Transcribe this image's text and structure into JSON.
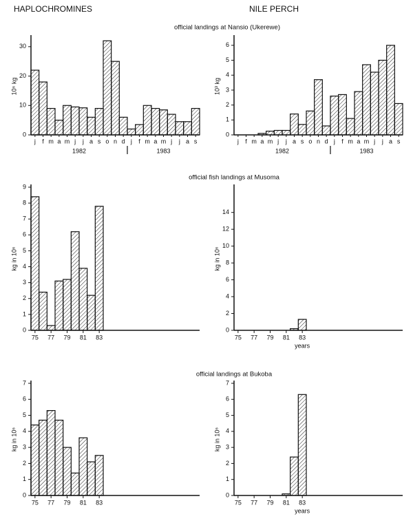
{
  "column_headers": [
    "HAPLOCHROMINES",
    "NILE PERCH"
  ],
  "section_titles": [
    "official landings at Nansio (Ukerewe)",
    "official fish landings at Musoma",
    "official landings at Bukoba"
  ],
  "chart_data": [
    {
      "type": "bar",
      "ylabel": "10⁶ kg",
      "categories": [
        "j",
        "f",
        "m",
        "a",
        "m",
        "j",
        "j",
        "a",
        "s",
        "o",
        "n",
        "d",
        "j",
        "f",
        "m",
        "a",
        "m",
        "j",
        "j",
        "a",
        "s"
      ],
      "values": [
        22,
        18,
        9,
        5,
        10,
        9.5,
        9.2,
        6,
        9,
        32,
        25,
        6,
        2,
        3.5,
        10,
        9,
        8.5,
        7,
        4.5,
        4.5,
        9
      ],
      "year_labels": [
        "1982",
        "1983"
      ],
      "ylim": [
        0,
        33
      ],
      "yticks": [
        0,
        10,
        20,
        30
      ]
    },
    {
      "type": "bar",
      "ylabel": "10³ kg",
      "categories": [
        "j",
        "f",
        "m",
        "a",
        "m",
        "j",
        "j",
        "a",
        "s",
        "o",
        "n",
        "d",
        "j",
        "f",
        "m",
        "a",
        "m",
        "j",
        "j",
        "a",
        "s"
      ],
      "values": [
        0,
        0,
        0,
        0.1,
        0.25,
        0.3,
        0.3,
        1.4,
        0.7,
        1.6,
        3.7,
        0.6,
        2.6,
        2.7,
        1.1,
        2.9,
        4.7,
        4.2,
        5.0,
        6.0,
        2.1
      ],
      "year_labels": [
        "1982",
        "1983"
      ],
      "ylim": [
        0,
        6.5
      ],
      "yticks": [
        0,
        1,
        2,
        3,
        4,
        5,
        6
      ]
    },
    {
      "type": "hist",
      "ylabel": "kg in 10⁶",
      "x": [
        75,
        76,
        77,
        78,
        79,
        80,
        81,
        82,
        83
      ],
      "values": [
        8.4,
        2.4,
        0.3,
        3.1,
        3.2,
        6.2,
        3.9,
        2.2,
        7.8
      ],
      "xlim": [
        74.5,
        95.5
      ],
      "xticks": [
        75,
        77,
        79,
        81,
        83
      ],
      "ylim": [
        0,
        9
      ],
      "yticks": [
        0,
        1,
        2,
        3,
        4,
        5,
        6,
        7,
        8,
        9
      ]
    },
    {
      "type": "hist",
      "ylabel": "kg in 10⁶",
      "xlabel": "years",
      "x": [
        75,
        76,
        77,
        78,
        79,
        80,
        81,
        82,
        83
      ],
      "values": [
        0,
        0,
        0,
        0,
        0,
        0,
        0,
        0.2,
        1.3
      ],
      "xlim": [
        74.5,
        95.5
      ],
      "xticks": [
        75,
        77,
        79,
        81,
        83
      ],
      "ylim": [
        0,
        17
      ],
      "yticks": [
        0,
        2,
        4,
        6,
        8,
        10,
        12,
        14
      ]
    },
    {
      "type": "hist",
      "ylabel": "kg in 10⁶",
      "x": [
        75,
        76,
        77,
        78,
        79,
        80,
        81,
        82,
        83
      ],
      "values": [
        4.4,
        4.7,
        5.3,
        4.7,
        3.0,
        1.4,
        3.6,
        2.1,
        2.5
      ],
      "xlim": [
        74.5,
        95.5
      ],
      "xticks": [
        75,
        77,
        79,
        81,
        83
      ],
      "ylim": [
        0,
        7
      ],
      "yticks": [
        0,
        1,
        2,
        3,
        4,
        5,
        6,
        7
      ]
    },
    {
      "type": "hist",
      "ylabel": "kg in 10⁶",
      "xlabel": "years",
      "x": [
        75,
        76,
        77,
        78,
        79,
        80,
        81,
        82,
        83
      ],
      "values": [
        0,
        0,
        0,
        0,
        0,
        0,
        0.1,
        2.4,
        6.3
      ],
      "xlim": [
        74.5,
        95.5
      ],
      "xticks": [
        75,
        77,
        79,
        81,
        83
      ],
      "ylim": [
        0,
        7
      ],
      "yticks": [
        0,
        1,
        2,
        3,
        4,
        5,
        6,
        7
      ]
    }
  ]
}
